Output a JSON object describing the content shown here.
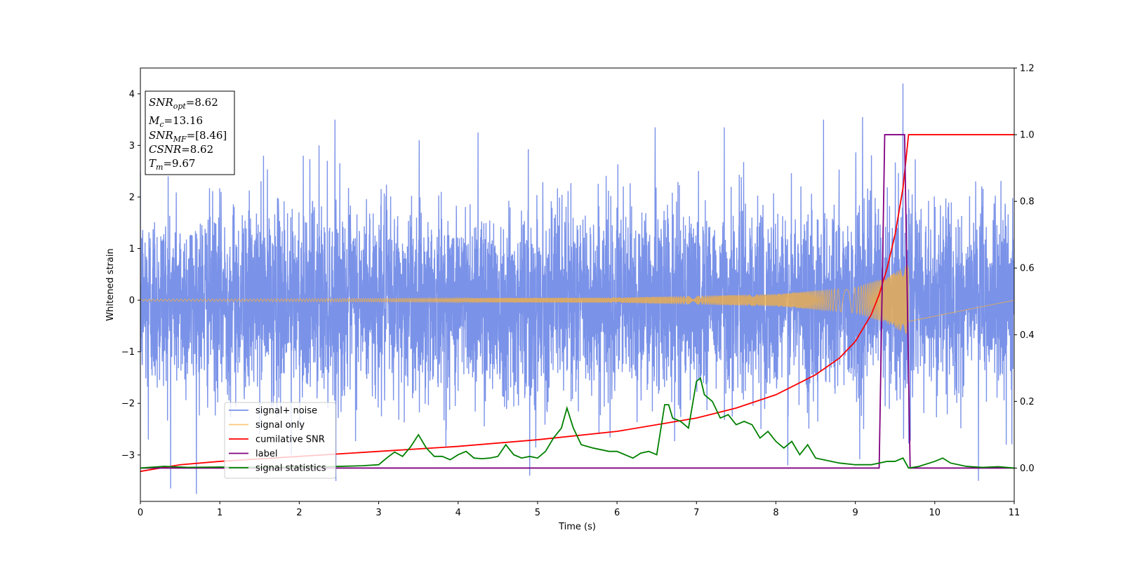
{
  "chart_data": {
    "type": "line",
    "xlabel": "Time (s)",
    "ylabel": "Whitened strain",
    "xlim": [
      0,
      11
    ],
    "ylim_left": [
      -3.9,
      4.5
    ],
    "ylim_right": [
      -0.1,
      1.2
    ],
    "x_ticks": [
      0,
      1,
      2,
      3,
      4,
      5,
      6,
      7,
      8,
      9,
      10,
      11
    ],
    "y_ticks_left": [
      -3,
      -2,
      -1,
      0,
      1,
      2,
      3,
      4
    ],
    "y_ticks_left_labels": [
      "−3",
      "−2",
      "−1",
      "0",
      "1",
      "2",
      "3",
      "4"
    ],
    "y_ticks_right": [
      0.0,
      0.2,
      0.4,
      0.6,
      0.8,
      1.0,
      1.2
    ],
    "y_ticks_right_labels": [
      "0.0",
      "0.2",
      "0.4",
      "0.6",
      "0.8",
      "1.0",
      "1.2"
    ],
    "legend_position": "lower-left",
    "series": [
      {
        "name": "signal+ noise",
        "axis": "left",
        "color": "#6b86e6",
        "style": "noise",
        "sample_rate_hz": 512,
        "noise_sigma": 0.9,
        "peak_points": [
          [
            0.35,
            2.4
          ],
          [
            1.55,
            2.8
          ],
          [
            2.05,
            2.8
          ],
          [
            2.25,
            3.0
          ],
          [
            2.45,
            3.5
          ],
          [
            4.25,
            3.25
          ],
          [
            6.48,
            3.35
          ],
          [
            7.35,
            3.35
          ],
          [
            8.6,
            3.5
          ],
          [
            9.6,
            4.2
          ],
          [
            0.1,
            -2.7
          ],
          [
            1.9,
            -3.0
          ],
          [
            4.9,
            -3.4
          ],
          [
            8.15,
            -3.2
          ],
          [
            10.55,
            -3.5
          ],
          [
            10.9,
            -2.8
          ]
        ]
      },
      {
        "name": "signal only",
        "axis": "left",
        "color": "#f5b041",
        "style": "chirp",
        "merger_time": 9.67,
        "amplitude_envelope": [
          [
            0,
            0.02
          ],
          [
            6,
            0.05
          ],
          [
            8,
            0.12
          ],
          [
            9,
            0.25
          ],
          [
            9.4,
            0.45
          ],
          [
            9.67,
            0.7
          ]
        ],
        "frequency_start_hz": 20,
        "frequency_end_hz": 180
      },
      {
        "name": "cumilative SNR",
        "axis": "right",
        "color": "#ff0000",
        "x": [
          0,
          0.5,
          1,
          2,
          3,
          4,
          5,
          6,
          7,
          7.5,
          8,
          8.5,
          8.8,
          9.0,
          9.2,
          9.3,
          9.4,
          9.5,
          9.6,
          9.67,
          11
        ],
        "y": [
          -0.01,
          0.01,
          0.02,
          0.035,
          0.05,
          0.065,
          0.085,
          0.11,
          0.15,
          0.18,
          0.22,
          0.28,
          0.33,
          0.38,
          0.46,
          0.52,
          0.6,
          0.7,
          0.84,
          1.0,
          1.0
        ]
      },
      {
        "name": "label",
        "axis": "right",
        "color": "#800080",
        "x": [
          0,
          9.3,
          9.37,
          9.62,
          9.69,
          11
        ],
        "y": [
          0,
          0,
          1,
          1,
          0,
          0
        ]
      },
      {
        "name": "signal statistics",
        "axis": "right",
        "color": "#008000",
        "x": [
          0,
          0.3,
          0.6,
          1.0,
          1.5,
          2.0,
          2.5,
          2.8,
          3.0,
          3.1,
          3.2,
          3.3,
          3.4,
          3.5,
          3.6,
          3.7,
          3.8,
          3.9,
          4.0,
          4.1,
          4.2,
          4.3,
          4.4,
          4.5,
          4.6,
          4.7,
          4.8,
          4.9,
          5.0,
          5.1,
          5.2,
          5.3,
          5.37,
          5.45,
          5.55,
          5.7,
          5.9,
          6.0,
          6.1,
          6.2,
          6.3,
          6.4,
          6.5,
          6.6,
          6.65,
          6.7,
          6.8,
          6.9,
          7.0,
          7.05,
          7.1,
          7.2,
          7.3,
          7.4,
          7.5,
          7.6,
          7.7,
          7.8,
          7.9,
          8.0,
          8.1,
          8.2,
          8.3,
          8.4,
          8.5,
          8.6,
          8.7,
          8.8,
          9.0,
          9.2,
          9.4,
          9.5,
          9.6,
          9.67,
          9.8,
          10.0,
          10.1,
          10.2,
          10.4,
          10.6,
          10.8,
          11.0
        ],
        "y": [
          0.0,
          0.005,
          0.002,
          0.003,
          0.002,
          0.002,
          0.005,
          0.007,
          0.01,
          0.03,
          0.048,
          0.035,
          0.063,
          0.1,
          0.06,
          0.035,
          0.035,
          0.025,
          0.04,
          0.05,
          0.03,
          0.028,
          0.03,
          0.035,
          0.07,
          0.04,
          0.03,
          0.035,
          0.03,
          0.05,
          0.09,
          0.12,
          0.18,
          0.12,
          0.07,
          0.06,
          0.05,
          0.05,
          0.04,
          0.03,
          0.045,
          0.05,
          0.04,
          0.19,
          0.19,
          0.15,
          0.14,
          0.12,
          0.26,
          0.27,
          0.22,
          0.2,
          0.15,
          0.16,
          0.13,
          0.14,
          0.13,
          0.09,
          0.11,
          0.08,
          0.06,
          0.08,
          0.04,
          0.07,
          0.03,
          0.025,
          0.02,
          0.015,
          0.01,
          0.01,
          0.02,
          0.02,
          0.03,
          0.0,
          0.005,
          0.02,
          0.03,
          0.015,
          0.005,
          0.002,
          0.004,
          0.0
        ]
      }
    ]
  },
  "annotation": {
    "snr_opt_main": "SNR",
    "snr_opt_sub": "opt",
    "snr_opt_value": "=8.62",
    "mc_main": "M",
    "mc_sub": "c",
    "mc_value": "=13.16",
    "snr_mf_main": "SNR",
    "snr_mf_sub": "MF",
    "snr_mf_value": "=[8.46]",
    "csnr_main": "CSNR",
    "csnr_value": "=8.62",
    "tm_main": "T",
    "tm_sub": "m",
    "tm_value": "=9.67"
  }
}
